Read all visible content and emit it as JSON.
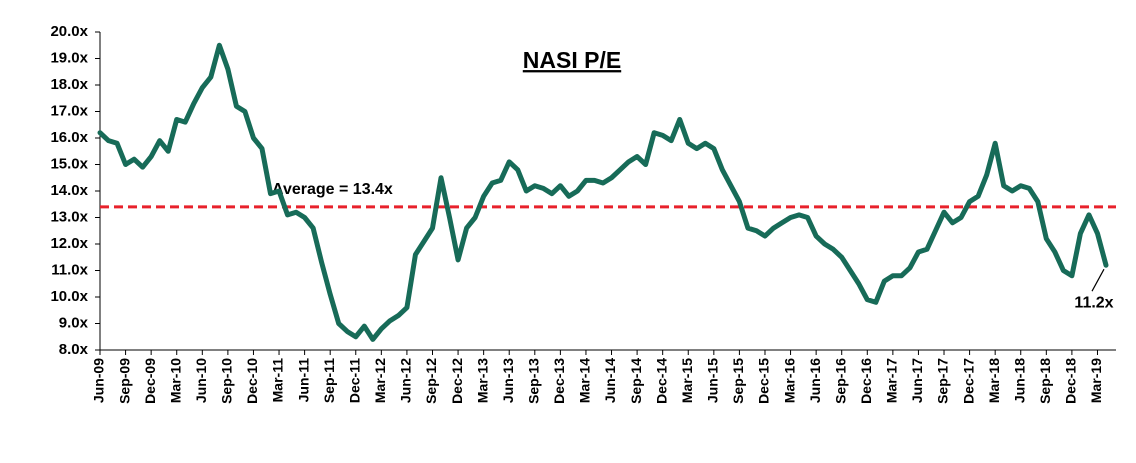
{
  "chart_data": {
    "type": "line",
    "title": "NASI P/E",
    "categories": [
      "Jun-09",
      null,
      null,
      "Sep-09",
      null,
      null,
      "Dec-09",
      null,
      null,
      "Mar-10",
      null,
      null,
      "Jun-10",
      null,
      null,
      "Sep-10",
      null,
      null,
      "Dec-10",
      null,
      null,
      "Mar-11",
      null,
      null,
      "Jun-11",
      null,
      null,
      "Sep-11",
      null,
      null,
      "Dec-11",
      null,
      null,
      "Mar-12",
      null,
      null,
      "Jun-12",
      null,
      null,
      "Sep-12",
      null,
      null,
      "Dec-12",
      null,
      null,
      "Mar-13",
      null,
      null,
      "Jun-13",
      null,
      null,
      "Sep-13",
      null,
      null,
      "Dec-13",
      null,
      null,
      "Mar-14",
      null,
      null,
      "Jun-14",
      null,
      null,
      "Sep-14",
      null,
      null,
      "Dec-14",
      null,
      null,
      "Mar-15",
      null,
      null,
      "Jun-15",
      null,
      null,
      "Sep-15",
      null,
      null,
      "Dec-15",
      null,
      null,
      "Mar-16",
      null,
      null,
      "Jun-16",
      null,
      null,
      "Sep-16",
      null,
      null,
      "Dec-16",
      null,
      null,
      "Mar-17",
      null,
      null,
      "Jun-17",
      null,
      null,
      "Sep-17",
      null,
      null,
      "Dec-17",
      null,
      null,
      "Mar-18",
      null,
      null,
      "Jun-18",
      null,
      null,
      "Sep-18",
      null,
      null,
      "Dec-18",
      null,
      null,
      "Mar-19",
      null
    ],
    "values": [
      16.2,
      15.9,
      15.8,
      15.0,
      15.2,
      14.9,
      15.3,
      15.9,
      15.5,
      16.7,
      16.6,
      17.3,
      17.9,
      18.3,
      19.5,
      18.6,
      17.2,
      17.0,
      16.0,
      15.6,
      13.9,
      14.0,
      13.1,
      13.2,
      13.0,
      12.6,
      11.3,
      10.1,
      9.0,
      8.7,
      8.5,
      8.9,
      8.4,
      8.8,
      9.1,
      9.3,
      9.6,
      11.6,
      12.1,
      12.6,
      14.5,
      13.0,
      11.4,
      12.6,
      13.0,
      13.8,
      14.3,
      14.4,
      15.1,
      14.8,
      14.0,
      14.2,
      14.1,
      13.9,
      14.2,
      13.8,
      14.0,
      14.4,
      14.4,
      14.3,
      14.5,
      14.8,
      15.1,
      15.3,
      15.0,
      16.2,
      16.1,
      15.9,
      16.7,
      15.8,
      15.6,
      15.8,
      15.6,
      14.8,
      14.2,
      13.6,
      12.6,
      12.5,
      12.3,
      12.6,
      12.8,
      13.0,
      13.1,
      13.0,
      12.3,
      12.0,
      11.8,
      11.5,
      11.0,
      10.5,
      9.9,
      9.8,
      10.6,
      10.8,
      10.8,
      11.1,
      11.7,
      11.8,
      12.5,
      13.2,
      12.8,
      13.0,
      13.6,
      13.8,
      14.6,
      15.8,
      14.2,
      14.0,
      14.2,
      14.1,
      13.6,
      12.2,
      11.7,
      11.0,
      10.8,
      12.4,
      13.1,
      12.4,
      11.2
    ],
    "color": "#176b58",
    "ylim": [
      8,
      20
    ],
    "yticks": [
      {
        "value": 8,
        "label": "8.0x"
      },
      {
        "value": 9,
        "label": "9.0x"
      },
      {
        "value": 10,
        "label": "10.0x"
      },
      {
        "value": 11,
        "label": "11.0x"
      },
      {
        "value": 12,
        "label": "12.0x"
      },
      {
        "value": 13,
        "label": "13.0x"
      },
      {
        "value": 14,
        "label": "14.0x"
      },
      {
        "value": 15,
        "label": "15.0x"
      },
      {
        "value": 16,
        "label": "16.0x"
      },
      {
        "value": 17,
        "label": "17.0x"
      },
      {
        "value": 18,
        "label": "18.0x"
      },
      {
        "value": 19,
        "label": "19.0x"
      },
      {
        "value": 20,
        "label": "20.0x"
      }
    ],
    "grid": false,
    "annotations": [
      {
        "label": "Average = 13.4x",
        "value": 13.4,
        "color": "#e8212b"
      },
      {
        "label": "11.2x",
        "value": 11.2
      }
    ]
  }
}
